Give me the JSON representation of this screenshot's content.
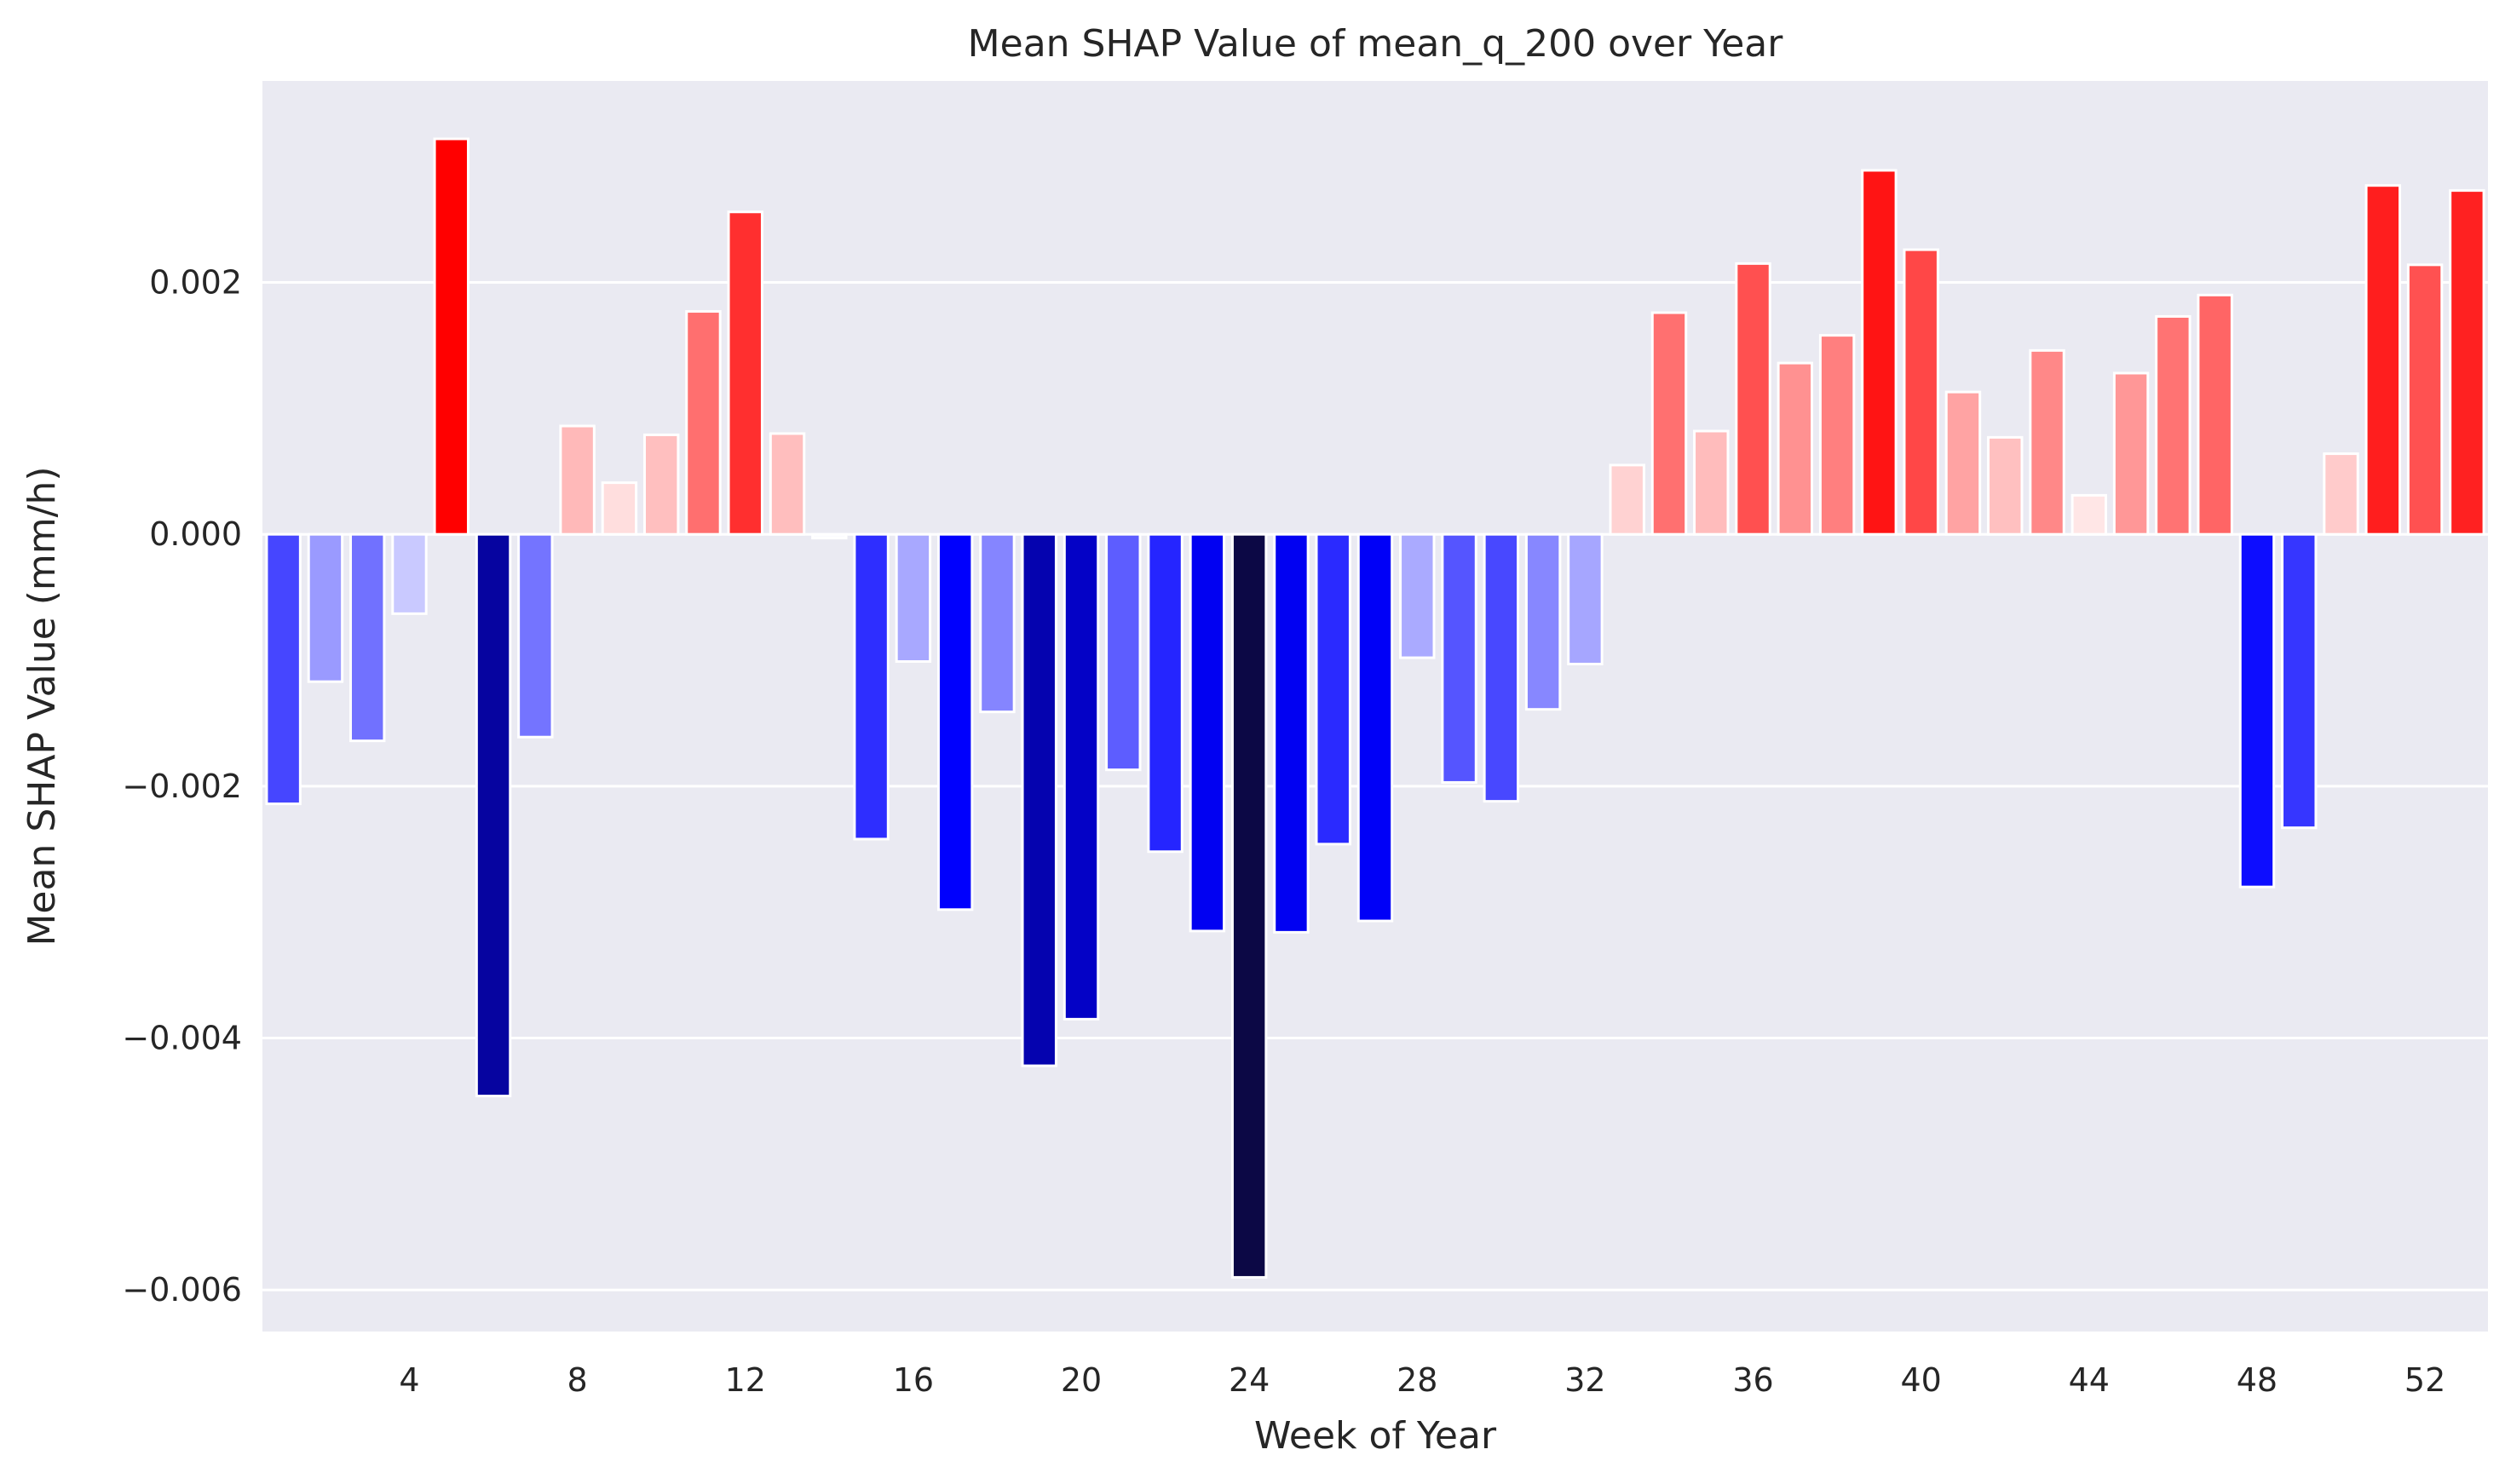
{
  "chart_data": {
    "type": "bar",
    "title": "Mean SHAP Value of mean_q_200 over Year",
    "xlabel": "Week of Year",
    "ylabel": "Mean SHAP Value (mm/h)",
    "grid": true,
    "ylim": [
      -0.00633,
      0.0036
    ],
    "yticks": [
      0.002,
      0.0,
      -0.002,
      -0.004,
      -0.006
    ],
    "ytick_labels": [
      "0.002",
      "0.000",
      "−0.002",
      "−0.004",
      "−0.006"
    ],
    "xticks": [
      4,
      8,
      12,
      16,
      20,
      24,
      28,
      32,
      36,
      40,
      44,
      48,
      52
    ],
    "xtick_labels": [
      "4",
      "8",
      "12",
      "16",
      "20",
      "24",
      "28",
      "32",
      "36",
      "40",
      "44",
      "48",
      "52"
    ],
    "categories": [
      1,
      2,
      3,
      4,
      5,
      6,
      7,
      8,
      9,
      10,
      11,
      12,
      13,
      14,
      15,
      16,
      17,
      18,
      19,
      20,
      21,
      22,
      23,
      24,
      25,
      26,
      27,
      28,
      29,
      30,
      31,
      32,
      33,
      34,
      35,
      36,
      37,
      38,
      39,
      40,
      41,
      42,
      43,
      44,
      45,
      46,
      47,
      48,
      49,
      50,
      51,
      52,
      53
    ],
    "values": [
      -0.00214,
      -0.00117,
      -0.00164,
      -0.00063,
      0.00314,
      -0.00446,
      -0.00161,
      0.00086,
      0.00041,
      0.00079,
      0.00177,
      0.00256,
      0.0008,
      -3e-05,
      -0.00242,
      -0.00101,
      -0.00298,
      -0.00141,
      -0.00422,
      -0.00385,
      -0.00187,
      -0.00252,
      -0.00315,
      -0.0059,
      -0.00316,
      -0.00246,
      -0.00307,
      -0.00098,
      -0.00197,
      -0.00212,
      -0.00139,
      -0.00103,
      0.00055,
      0.00176,
      0.00082,
      0.00215,
      0.00136,
      0.00158,
      0.00289,
      0.00226,
      0.00113,
      0.00077,
      0.00146,
      0.00031,
      0.00128,
      0.00173,
      0.0019,
      -0.0028,
      -0.00233,
      0.00064,
      0.00277,
      0.00214,
      0.00273
    ],
    "colors": {
      "background": "#eaeaf2",
      "grid": "#ffffff",
      "bar_edge": "#ffffff",
      "negative_extreme": "#0c0845",
      "negative_mid": "#0000ff",
      "neutral": "#ffffff",
      "positive_max": "#ff0000"
    }
  }
}
